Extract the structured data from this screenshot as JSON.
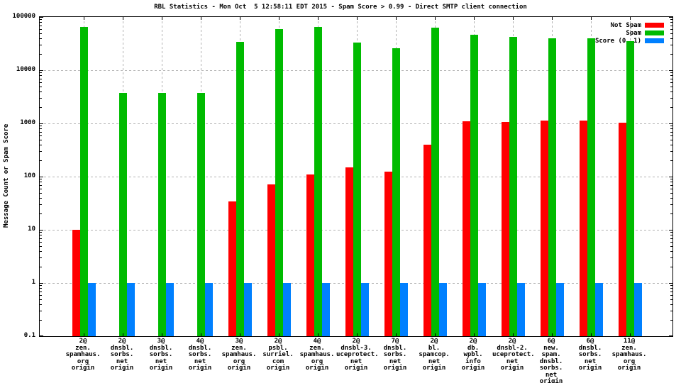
{
  "title": "RBL Statistics - Mon Oct  5 12:58:11 EDT 2015 - Spam Score > 0.99 - Direct SMTP client connection",
  "ylabel": "Message Count or Spam Score",
  "legend": [
    {
      "label": "Not Spam",
      "color": "#ff0000"
    },
    {
      "label": "Spam",
      "color": "#00bb00"
    },
    {
      "label": "Score (0..1)",
      "color": "#0080ff"
    }
  ],
  "chart_data": {
    "type": "bar",
    "y_scale": "log",
    "ylim": [
      0.1,
      100000
    ],
    "grid": true,
    "legend_position": "top-right",
    "y_ticks": [
      "100000",
      "10000",
      "1000",
      "100",
      "10",
      "1",
      "0.1"
    ],
    "categories": [
      [
        "2@",
        "zen.",
        "spamhaus.",
        "org",
        "origin"
      ],
      [
        "2@",
        "dnsbl.",
        "sorbs.",
        "net",
        "origin"
      ],
      [
        "3@",
        "dnsbl.",
        "sorbs.",
        "net",
        "origin"
      ],
      [
        "4@",
        "dnsbl.",
        "sorbs.",
        "net",
        "origin"
      ],
      [
        "3@",
        "zen.",
        "spamhaus.",
        "org",
        "origin"
      ],
      [
        "2@",
        "psbl.",
        "surriel.",
        "com",
        "origin"
      ],
      [
        "4@",
        "zen.",
        "spamhaus.",
        "org",
        "origin"
      ],
      [
        "2@",
        "dnsbl-3.",
        "uceprotect.",
        "net",
        "origin"
      ],
      [
        "7@",
        "dnsbl.",
        "sorbs.",
        "net",
        "origin"
      ],
      [
        "2@",
        "bl.",
        "spamcop.",
        "net",
        "origin"
      ],
      [
        "2@",
        "db.",
        "wpbl.",
        "info",
        "origin"
      ],
      [
        "2@",
        "dnsbl-2.",
        "uceprotect.",
        "net",
        "origin"
      ],
      [
        "6@",
        "new.",
        "spam.",
        "dnsbl.",
        "sorbs.",
        "net",
        "origin"
      ],
      [
        "6@",
        "dnsbl.",
        "sorbs.",
        "net",
        "origin"
      ],
      [
        "11@",
        "zen.",
        "spamhaus.",
        "org",
        "origin"
      ]
    ],
    "series": [
      {
        "name": "Not Spam",
        "color": "#ff0000",
        "values": [
          10,
          null,
          null,
          null,
          34,
          72,
          110,
          150,
          125,
          400,
          1100,
          1070,
          1120,
          1120,
          1020
        ]
      },
      {
        "name": "Spam",
        "color": "#00bb00",
        "values": [
          66000,
          3800,
          3800,
          3800,
          34000,
          59000,
          65000,
          33000,
          26000,
          63000,
          47000,
          42000,
          40000,
          40000,
          35000
        ]
      },
      {
        "name": "Score (0..1)",
        "color": "#0080ff",
        "values": [
          1,
          1,
          1,
          1,
          1,
          1,
          1,
          1,
          1,
          1,
          1,
          1,
          1,
          1,
          1
        ]
      }
    ]
  }
}
